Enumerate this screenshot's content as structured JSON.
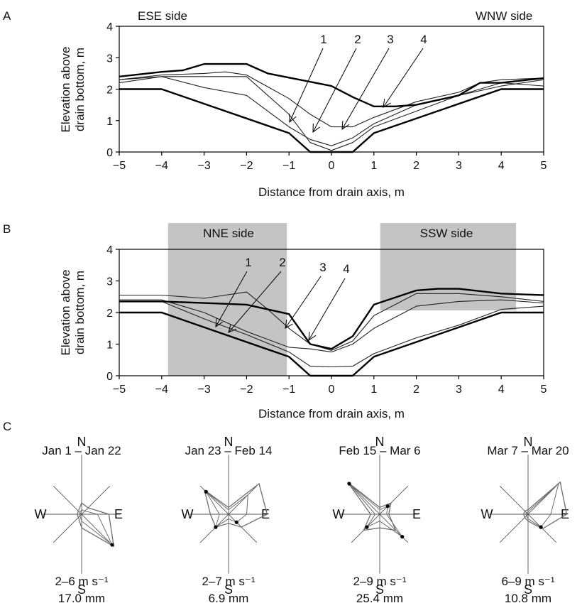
{
  "panels": {
    "A": {
      "letter": "A",
      "left_side": "ESE side",
      "right_side": "WNW side",
      "ylabel_line1": "Elevation above",
      "ylabel_line2": "drain bottom, m",
      "xlabel": "Distance from drain axis, m",
      "curve_labels": [
        "1",
        "2",
        "3",
        "4"
      ]
    },
    "B": {
      "letter": "B",
      "left_side": "NNE side",
      "right_side": "SSW side",
      "ylabel_line1": "Elevation above",
      "ylabel_line2": "drain bottom, m",
      "xlabel": "Distance from drain axis, m",
      "curve_labels": [
        "1",
        "2",
        "3",
        "4"
      ]
    },
    "C": {
      "letter": "C"
    }
  },
  "chart_data": [
    {
      "type": "line",
      "panel": "A",
      "xlim": [
        -5,
        5
      ],
      "ylim": [
        0,
        4
      ],
      "x_ticks": [
        "−5",
        "−4",
        "−3",
        "−2",
        "−1",
        "0",
        "1",
        "2",
        "3",
        "4",
        "5"
      ],
      "y_ticks": [
        "0",
        "1",
        "2",
        "3",
        "4"
      ],
      "series": [
        {
          "role": "drain",
          "x": [
            -5,
            -4,
            -1,
            -0.5,
            0.5,
            1,
            4,
            5
          ],
          "y": [
            2,
            2,
            0.6,
            0,
            0,
            0.6,
            2,
            2
          ]
        },
        {
          "x": [
            -5,
            -4,
            -3,
            -2,
            -1,
            -0.5,
            0,
            0.5,
            1,
            2,
            3,
            4,
            5
          ],
          "y": [
            2.2,
            2.4,
            2.4,
            2.4,
            1.2,
            0.3,
            0.05,
            0.3,
            0.8,
            1.3,
            1.8,
            2.2,
            2.1
          ]
        },
        {
          "x": [
            -5,
            -4,
            -3,
            -2,
            -1,
            -0.5,
            0,
            0.5,
            1,
            2,
            3,
            4,
            5
          ],
          "y": [
            2.3,
            2.4,
            2.05,
            1.8,
            0.8,
            0.4,
            0.2,
            0.45,
            0.9,
            1.5,
            1.8,
            2.1,
            2.3
          ]
        },
        {
          "x": [
            -5,
            -4,
            -3,
            -2.5,
            -2,
            -1,
            -0.5,
            0,
            0.5,
            1,
            2,
            3,
            3.5,
            4,
            5
          ],
          "y": [
            2.3,
            2.45,
            2.5,
            2.55,
            2.45,
            1.7,
            1.2,
            0.8,
            0.8,
            1.1,
            1.6,
            1.9,
            2.2,
            2.3,
            2.35
          ]
        },
        {
          "role": "bold",
          "x": [
            -5,
            -4,
            -3.5,
            -3,
            -2,
            -1.5,
            0,
            0.5,
            1,
            1.5,
            2,
            3,
            3.5,
            4,
            5
          ],
          "y": [
            2.4,
            2.55,
            2.6,
            2.8,
            2.8,
            2.5,
            2.1,
            1.75,
            1.45,
            1.45,
            1.5,
            1.8,
            2.2,
            2.2,
            2.35
          ]
        }
      ]
    },
    {
      "type": "line",
      "panel": "B",
      "xlim": [
        -5,
        5
      ],
      "ylim": [
        0,
        4
      ],
      "x_ticks": [
        "−5",
        "−4",
        "−3",
        "−2",
        "−1",
        "0",
        "1",
        "2",
        "3",
        "4",
        "5"
      ],
      "y_ticks": [
        "0",
        "1",
        "2",
        "3",
        "4"
      ],
      "shaded_x_ranges": [
        [
          -3.85,
          -1.05
        ],
        [
          1.15,
          4.35
        ]
      ],
      "series": [
        {
          "role": "drain",
          "x": [
            -5,
            -4,
            -1,
            -0.5,
            0.5,
            1,
            4,
            5
          ],
          "y": [
            2,
            2,
            0.6,
            0,
            0,
            0.6,
            2,
            2
          ]
        },
        {
          "x": [
            -5,
            -4,
            -3,
            -2,
            -1,
            -0.5,
            0,
            0.5,
            1,
            2,
            3,
            4,
            5
          ],
          "y": [
            2.35,
            2.35,
            1.8,
            1.3,
            0.75,
            0.3,
            0.28,
            0.3,
            0.7,
            1.2,
            1.6,
            2.1,
            2.2
          ]
        },
        {
          "x": [
            -5,
            -4,
            -3,
            -2,
            -1,
            -0.5,
            0,
            0.5,
            1,
            2,
            3,
            4,
            5
          ],
          "y": [
            2.4,
            2.4,
            2.0,
            1.4,
            0.9,
            0.85,
            0.75,
            1.0,
            1.5,
            2.2,
            2.35,
            2.4,
            2.3
          ]
        },
        {
          "x": [
            -5,
            -4,
            -3,
            -2,
            -1.5,
            -1,
            -0.5,
            0,
            0.5,
            1,
            2,
            3,
            4,
            5
          ],
          "y": [
            2.55,
            2.55,
            2.45,
            2.65,
            2.1,
            1.5,
            1.0,
            0.8,
            1.1,
            1.9,
            2.6,
            2.6,
            2.5,
            2.35
          ]
        },
        {
          "role": "bold",
          "x": [
            -5,
            -4,
            -3,
            -2,
            -1,
            -0.5,
            0,
            0.5,
            1,
            2,
            2.5,
            3,
            4,
            5
          ],
          "y": [
            2.35,
            2.35,
            2.3,
            2.25,
            1.95,
            1.0,
            0.85,
            1.25,
            2.25,
            2.7,
            2.75,
            2.75,
            2.6,
            2.55
          ]
        }
      ]
    },
    {
      "type": "wind-rose",
      "panel": "C",
      "roses": [
        {
          "period": "Jan 1 – Jan 22",
          "speed": "2–6 m s⁻¹",
          "total": "17.0 mm",
          "outer": {
            "N": 0.25,
            "NE": 0.2,
            "E": 0.6,
            "SE": 1.0,
            "S": 0.3,
            "SW": 0.1,
            "W": 0.1,
            "NW": 0.1
          },
          "inner": {
            "N": 0.1,
            "NE": 0.1,
            "E": 0.35,
            "SE": 0.95,
            "S": 0.15,
            "SW": 0.05,
            "W": 0.05,
            "NW": 0.05
          },
          "dots": [
            "SE"
          ]
        },
        {
          "period": "Jan 23 – Feb 14",
          "speed": "2–7 m s⁻¹",
          "total": "6.9 mm",
          "outer": {
            "N": 0.15,
            "NE": 0.95,
            "E": 0.85,
            "SE": 0.4,
            "S": 0.2,
            "SW": 0.4,
            "W": 0.4,
            "NW": 0.75
          },
          "inner": {
            "N": 0.1,
            "NE": 0.6,
            "E": 0.4,
            "SE": 0.25,
            "S": 0.1,
            "SW": 0.4,
            "W": 0.2,
            "NW": 0.7
          },
          "dots": [
            "NW",
            "SW",
            "SE"
          ]
        },
        {
          "period": "Feb 15 – Mar 6",
          "speed": "2–9 m s⁻¹",
          "total": "25.4 mm",
          "outer": {
            "N": 0.15,
            "NE": 0.35,
            "E": 0.2,
            "SE": 0.5,
            "S": 0.3,
            "SW": 0.5,
            "W": 0.2,
            "NW": 1.0
          },
          "inner": {
            "N": 0.1,
            "NE": 0.25,
            "E": 0.15,
            "SE": 0.7,
            "S": 0.15,
            "SW": 0.4,
            "W": 0.1,
            "NW": 0.95
          },
          "dots": [
            "NW",
            "NE",
            "SE",
            "SW"
          ]
        },
        {
          "period": "Mar 7 – Mar 20",
          "speed": "6–9 m s⁻¹",
          "total": "10.8 mm",
          "outer": {
            "N": 0.1,
            "NE": 1.0,
            "E": 0.85,
            "SE": 0.45,
            "S": 0.15,
            "SW": 0.1,
            "W": 0.1,
            "NW": 0.1
          },
          "inner": {
            "N": 0.05,
            "NE": 0.95,
            "E": 0.5,
            "SE": 0.4,
            "S": 0.1,
            "SW": 0.05,
            "W": 0.05,
            "NW": 0.05
          },
          "dots": [
            "SE"
          ]
        }
      ],
      "directions": [
        "N",
        "E",
        "S",
        "W"
      ]
    }
  ],
  "colors": {
    "shade": "#c4c4c4",
    "thin_line": "#222222",
    "bold_line": "#000000",
    "rose_line": "#6e6e6e"
  }
}
